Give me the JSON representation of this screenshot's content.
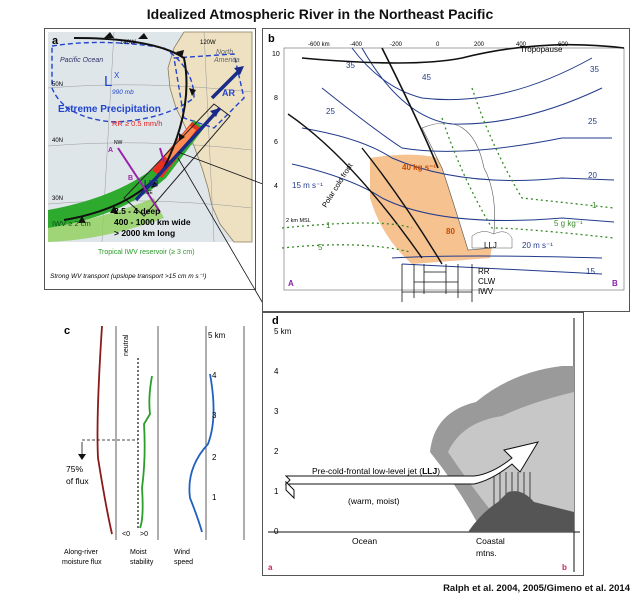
{
  "title": "Idealized Atmospheric River in the Northeast Pacific",
  "credit": "Ralph et al. 2004, 2005/Gimeno et al. 2014",
  "panel_a": {
    "letter": "a",
    "lon_labels": [
      "140W",
      "120W"
    ],
    "lat_labels": [
      "50N",
      "40N",
      "30N"
    ],
    "pacific_label": "Pacific Ocean",
    "na_label_1": "North",
    "na_label_2": "America",
    "low_symbol": "L",
    "low_sup": "X",
    "low_pressure": "990 mb",
    "extreme_precip": "Extreme Precipitation",
    "rr_label": "RR ≥ 0.5 mm/h",
    "ar_label": "AR",
    "llj_label": "LLJ",
    "point_a": "A",
    "point_b": "B",
    "nw_label": "NW",
    "se_label": "SE",
    "iwv_label": "IWV ≥ 2 cm",
    "dims_1": "2.5 - 4 deep",
    "dims_2": "400 - 1000 km wide",
    "dims_3": "> 2000 km long",
    "reservoir": "Tropical IWV reservoir (≥ 3 cm)",
    "caption": "Strong WV transport (upslope transport >15 cm m s⁻¹)"
  },
  "panel_b": {
    "letter": "b",
    "x_ticks": [
      "-600 km",
      "-400",
      "-200",
      "0",
      "200",
      "400",
      "600"
    ],
    "y_ticks": [
      "10",
      "8",
      "6",
      "4"
    ],
    "km_msl": "2 km MSL",
    "tropopause": "Tropopause",
    "polar_front": "Polar cold front",
    "isotach_labels": [
      "35",
      "45",
      "35",
      "25",
      "25",
      "20",
      "15"
    ],
    "wind_unit": "15 m s⁻¹",
    "wind_unit2": "20 m s⁻¹",
    "flux_label": "40 kg s⁻¹",
    "flux_80": "80",
    "moist_label": "5 g kg⁻¹",
    "moist_1": "1",
    "moist_5": "5",
    "moist_1b": "1",
    "llj": "LLJ",
    "end_a": "A",
    "end_b": "B",
    "rr": "RR",
    "clw": "CLW",
    "iwv": "IWV"
  },
  "panel_c": {
    "letter": "c",
    "km_ticks": [
      "5 km",
      "4",
      "3",
      "2",
      "1"
    ],
    "neutral": "neutral",
    "flux_pct": "75%",
    "flux_of": "of flux",
    "lt0": "<0",
    "gt0": ">0",
    "label_flux_1": "Along-river",
    "label_flux_2": "moisture flux",
    "label_stab_1": "Moist",
    "label_stab_2": "stability",
    "label_wind_1": "Wind",
    "label_wind_2": "speed"
  },
  "panel_d": {
    "letter": "d",
    "km_ticks": [
      "5 km",
      "4",
      "3",
      "2",
      "1",
      "0"
    ],
    "jet_line1": "Pre-cold-frontal low-level jet (",
    "jet_bold": "LLJ",
    "jet_line1_end": ")",
    "warm_moist": "(warm, moist)",
    "ocean": "Ocean",
    "coastal_1": "Coastal",
    "coastal_2": "mtns.",
    "corner_a": "a",
    "corner_b": "b"
  }
}
